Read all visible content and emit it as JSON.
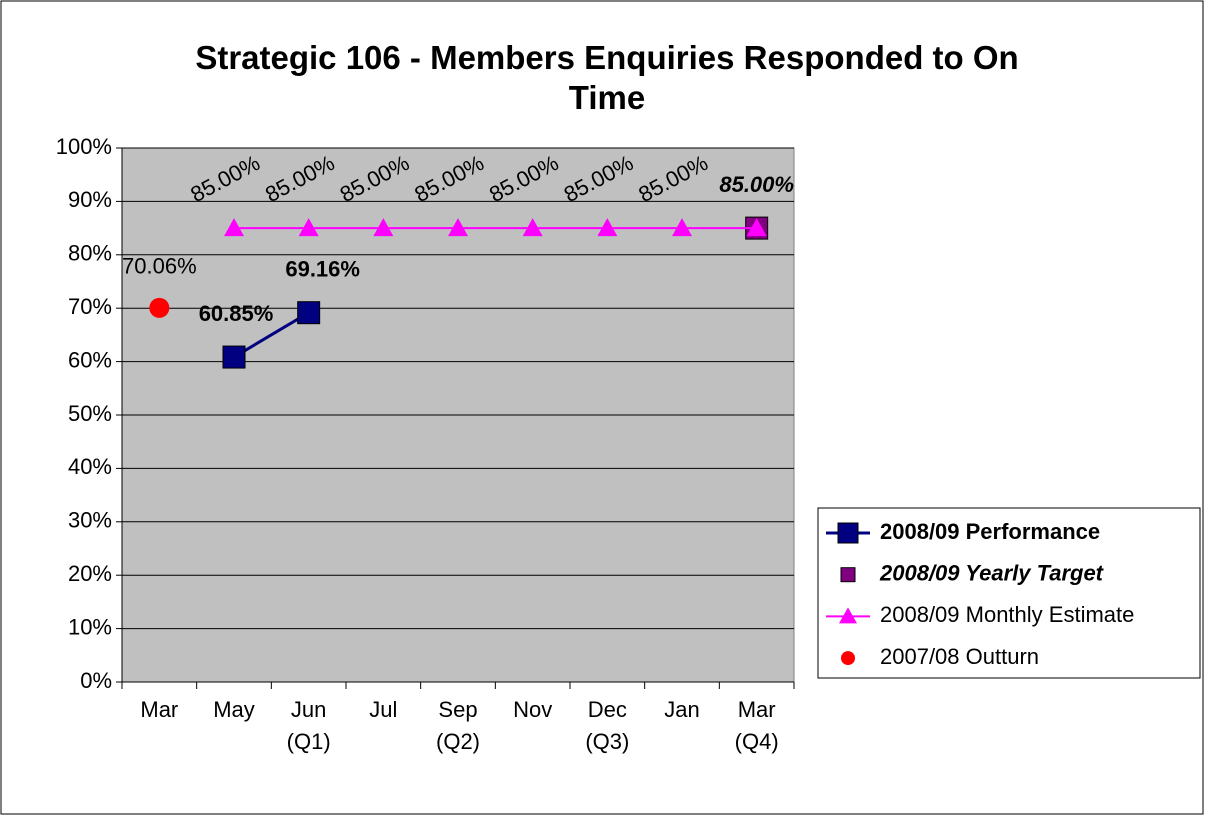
{
  "chart_data": {
    "type": "line",
    "title": "Strategic 106 - Members Enquiries Responded to On Time",
    "categories": [
      "Mar",
      "May",
      "Jun\n(Q1)",
      "Jul",
      "Sep\n(Q2)",
      "Nov",
      "Dec\n(Q3)",
      "Jan",
      "Mar\n(Q4)"
    ],
    "series": [
      {
        "name": "2008/09 Performance",
        "color": "#000080",
        "marker": "square",
        "line": true,
        "values": [
          null,
          60.85,
          69.16,
          null,
          null,
          null,
          null,
          null,
          null
        ],
        "value_labels": [
          null,
          "60.85%",
          "69.16%",
          null,
          null,
          null,
          null,
          null,
          null
        ]
      },
      {
        "name": "2008/09 Yearly Target",
        "color": "#800080",
        "marker": "square",
        "line": false,
        "values": [
          null,
          null,
          null,
          null,
          null,
          null,
          null,
          null,
          85
        ],
        "value_labels": [
          null,
          null,
          null,
          null,
          null,
          null,
          null,
          null,
          "85.00%"
        ]
      },
      {
        "name": "2008/09 Monthly Estimate",
        "color": "#ff00ff",
        "marker": "triangle",
        "line": true,
        "values": [
          null,
          85,
          85,
          85,
          85,
          85,
          85,
          85,
          85
        ],
        "value_labels": [
          null,
          "85.00%",
          "85.00%",
          "85.00%",
          "85.00%",
          "85.00%",
          "85.00%",
          "85.00%",
          null
        ]
      },
      {
        "name": "2007/08 Outturn",
        "color": "#ff0000",
        "marker": "circle",
        "line": false,
        "values": [
          70.06,
          null,
          null,
          null,
          null,
          null,
          null,
          null,
          null
        ],
        "value_labels": [
          "70.06%",
          null,
          null,
          null,
          null,
          null,
          null,
          null,
          null
        ]
      }
    ],
    "ylim": [
      0,
      100
    ],
    "yticks": [
      {
        "value": 0,
        "label": "0%"
      },
      {
        "value": 10,
        "label": "10%"
      },
      {
        "value": 20,
        "label": "20%"
      },
      {
        "value": 30,
        "label": "30%"
      },
      {
        "value": 40,
        "label": "40%"
      },
      {
        "value": 50,
        "label": "50%"
      },
      {
        "value": 60,
        "label": "60%"
      },
      {
        "value": 70,
        "label": "70%"
      },
      {
        "value": 80,
        "label": "80%"
      },
      {
        "value": 90,
        "label": "90%"
      },
      {
        "value": 100,
        "label": "100%"
      }
    ],
    "grid": true,
    "legend": "right"
  }
}
